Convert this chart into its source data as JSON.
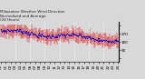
{
  "title": "Milwaukee Weather Wind Direction\nNormalized and Average\n(24 Hours)",
  "background_color": "#d8d8d8",
  "plot_bg_color": "#d8d8d8",
  "n_points": 144,
  "y_min": -40,
  "y_max": 400,
  "yticks": [
    0,
    90,
    180,
    270,
    360
  ],
  "ytick_labels": [
    "",
    "90",
    "180",
    "270",
    ""
  ],
  "bar_color": "#dd0000",
  "avg_color": "#0000cc",
  "grid_color": "#ffffff",
  "title_fontsize": 3.0,
  "tick_fontsize": 3.0,
  "n_gridlines": 7,
  "n_xticks": 25
}
